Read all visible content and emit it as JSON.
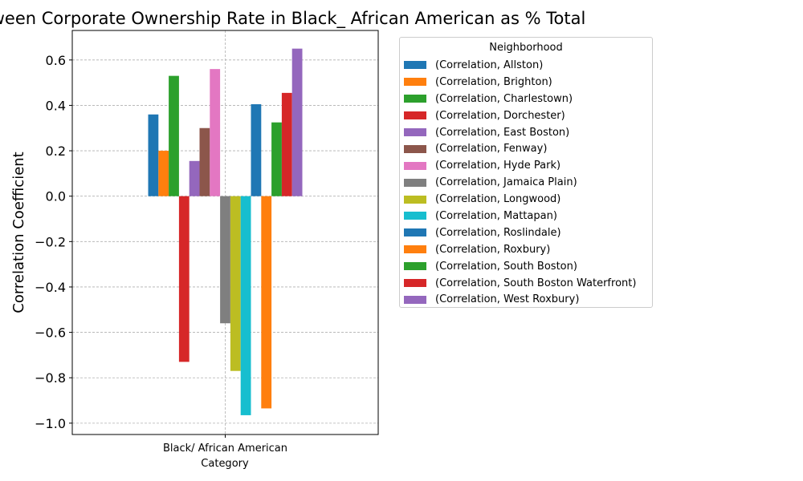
{
  "chart_data": {
    "type": "bar",
    "title": "Correlation Between Corporate Ownership Rate in Black_ African American as % Total",
    "xlabel": "Category",
    "ylabel": "Correlation Coefficient",
    "categories": [
      "Black/ African American"
    ],
    "ylim": [
      -1.05,
      0.73
    ],
    "yticks": [
      -1.0,
      -0.8,
      -0.6,
      -0.4,
      -0.2,
      0.0,
      0.2,
      0.4,
      0.6
    ],
    "grid": true,
    "legend_title": "Neighborhood",
    "legend_position": "outside-right",
    "series": [
      {
        "name": "(Correlation, Allston)",
        "values": [
          0.36
        ],
        "color": "#1f77b4"
      },
      {
        "name": "(Correlation, Brighton)",
        "values": [
          0.2
        ],
        "color": "#ff7f0e"
      },
      {
        "name": "(Correlation, Charlestown)",
        "values": [
          0.53
        ],
        "color": "#2ca02c"
      },
      {
        "name": "(Correlation, Dorchester)",
        "values": [
          -0.73
        ],
        "color": "#d62728"
      },
      {
        "name": "(Correlation, East Boston)",
        "values": [
          0.155
        ],
        "color": "#9467bd"
      },
      {
        "name": "(Correlation, Fenway)",
        "values": [
          0.3
        ],
        "color": "#8c564b"
      },
      {
        "name": "(Correlation, Hyde Park)",
        "values": [
          0.56
        ],
        "color": "#e377c2"
      },
      {
        "name": "(Correlation, Jamaica Plain)",
        "values": [
          -0.56
        ],
        "color": "#7f7f7f"
      },
      {
        "name": "(Correlation, Longwood)",
        "values": [
          -0.77
        ],
        "color": "#bcbd22"
      },
      {
        "name": "(Correlation, Mattapan)",
        "values": [
          -0.965
        ],
        "color": "#17becf"
      },
      {
        "name": "(Correlation, Roslindale)",
        "values": [
          0.405
        ],
        "color": "#1f77b4"
      },
      {
        "name": "(Correlation, Roxbury)",
        "values": [
          -0.935
        ],
        "color": "#ff7f0e"
      },
      {
        "name": "(Correlation, South Boston)",
        "values": [
          0.325
        ],
        "color": "#2ca02c"
      },
      {
        "name": "(Correlation, South Boston Waterfront)",
        "values": [
          0.455
        ],
        "color": "#d62728"
      },
      {
        "name": "(Correlation, West Roxbury)",
        "values": [
          0.65
        ],
        "color": "#9467bd"
      }
    ]
  }
}
